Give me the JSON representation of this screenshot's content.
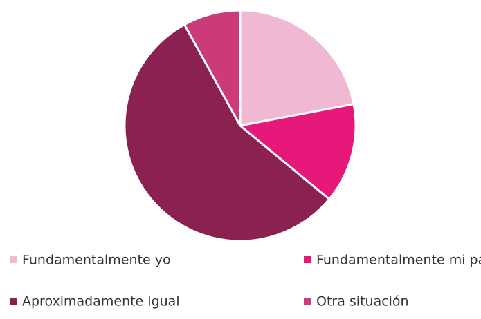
{
  "chart_data": {
    "type": "pie",
    "categories": [
      "Fundamentalmente yo",
      "Fundamentalmente mi pareja",
      "Aproximadamente igual",
      "Otra situación"
    ],
    "values": [
      22,
      14,
      56,
      8
    ],
    "colors": [
      "#f0b8d2",
      "#e6197a",
      "#8b2150",
      "#cc3a7a"
    ]
  }
}
